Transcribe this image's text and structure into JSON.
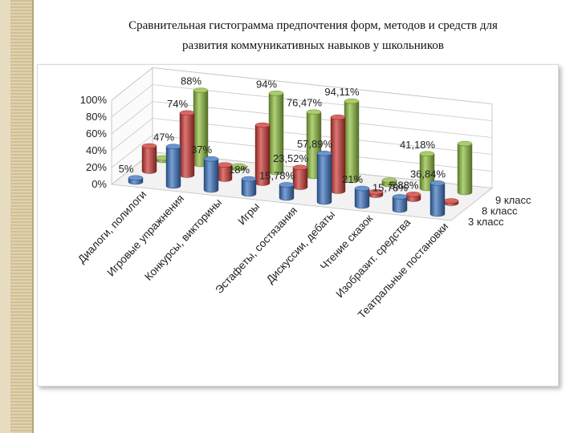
{
  "page": {
    "title_line1": "Сравнительная  гистограмма предпочтения форм, методов и средств для",
    "title_line2": "развития коммуникативных навыков у школьников"
  },
  "chart_data": {
    "type": "bar",
    "title": "",
    "categories": [
      "Диалоги, полилоги",
      "Игровые упражнения",
      "Конкурсы, викторины",
      "Игры",
      "Эстафеты, состязания",
      "Дискуссии, дебаты",
      "Чтение сказок",
      "Изобразит. средства",
      "Театральные постановки"
    ],
    "series": [
      {
        "name": "3 класс",
        "color": "#3f76c3",
        "values": [
          5,
          47,
          37,
          18,
          15.78,
          57.89,
          21,
          15.78,
          36.84
        ],
        "labels": [
          "5%",
          "47%",
          "37%",
          "18%",
          "15,78%",
          "57,89%",
          "21%",
          "15,78%",
          "36,84%"
        ]
      },
      {
        "name": "8 класс",
        "color": "#cf3b36",
        "values": [
          30,
          74,
          17,
          69,
          23.52,
          88,
          4,
          5.88,
          0
        ],
        "labels": [
          "",
          "74%",
          "",
          "",
          "23,52%",
          "",
          "",
          "5,88%",
          ""
        ]
      },
      {
        "name": "9 класс",
        "color": "#8fbf3f",
        "values": [
          0,
          88,
          0,
          94,
          76.47,
          94.11,
          5,
          41.18,
          58
        ],
        "labels": [
          "",
          "88%",
          "",
          "94%",
          "76,47%",
          "94,11%",
          "",
          "41,18%",
          ""
        ]
      }
    ],
    "y_ticks": [
      "0%",
      "20%",
      "40%",
      "60%",
      "80%",
      "100%"
    ],
    "ylim": [
      0,
      100
    ],
    "grid": true,
    "legend_position": "right"
  }
}
